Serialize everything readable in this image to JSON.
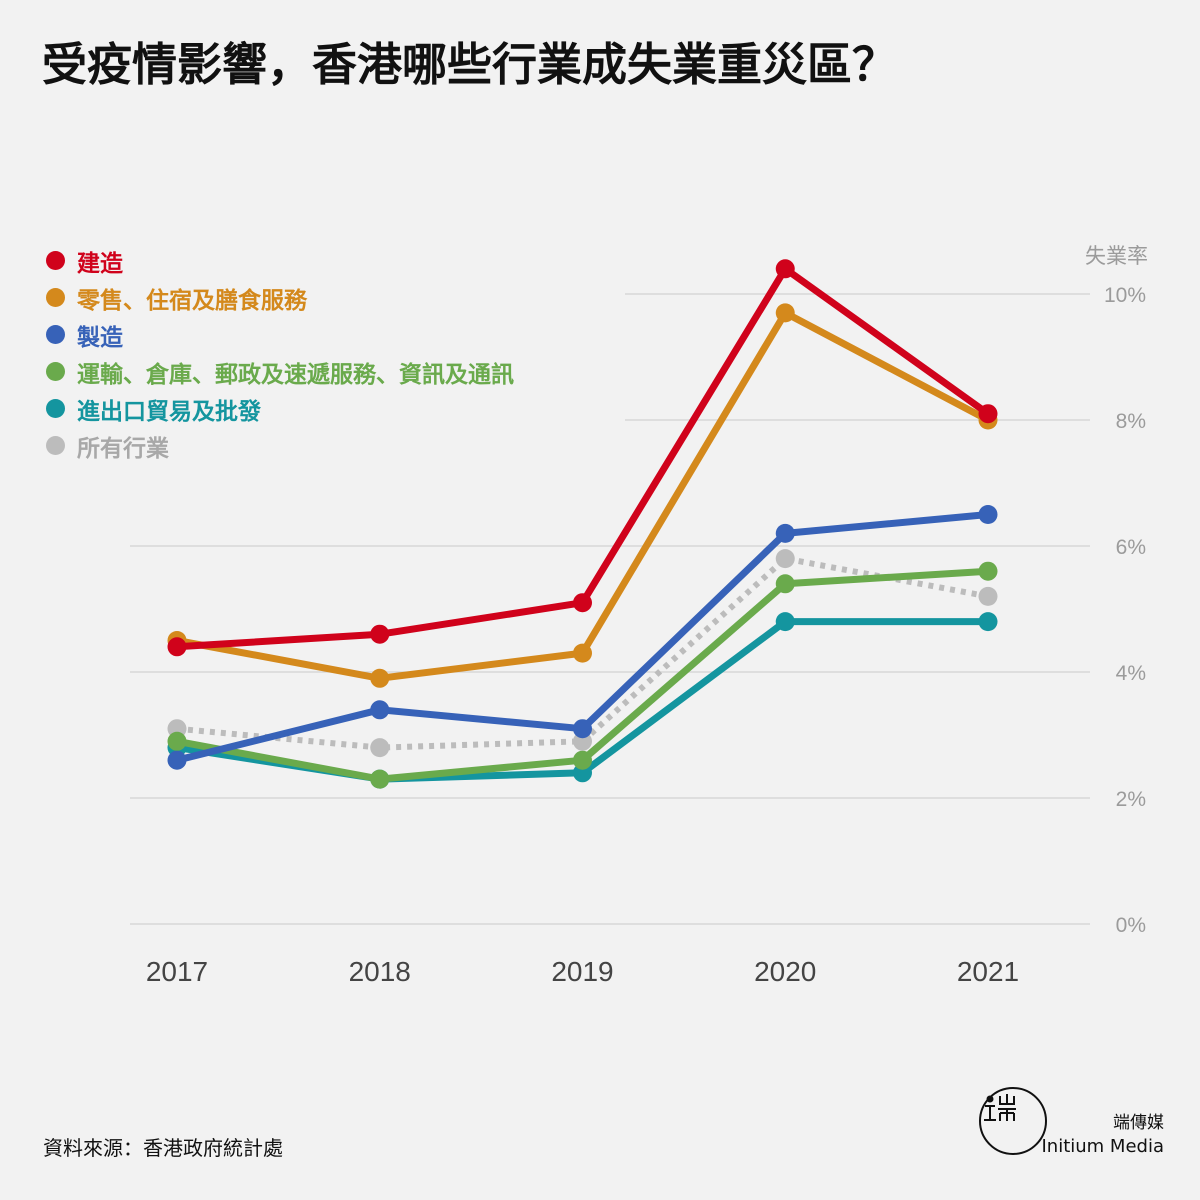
{
  "title": "受疫情影響，香港哪些行業成失業重災區？",
  "source": "資料來源：香港政府統計處",
  "brand": {
    "name_cn": "端傳媒",
    "name_en": "Initium Media"
  },
  "chart_data": {
    "type": "line",
    "title": "受疫情影響，香港哪些行業成失業重災區？",
    "ylabel": "失業率",
    "ylim": [
      0,
      10
    ],
    "yticks": [
      0,
      2,
      4,
      6,
      8,
      10
    ],
    "ytick_labels": [
      "0%",
      "2%",
      "4%",
      "6%",
      "8%",
      "10%"
    ],
    "categories": [
      "2017",
      "2018",
      "2019",
      "2020",
      "2021"
    ],
    "grid": true,
    "legend_position": "top-left",
    "series": [
      {
        "name": "建造",
        "color": "#d0021b",
        "style": "solid",
        "values": [
          4.4,
          4.6,
          5.1,
          10.4,
          8.1
        ]
      },
      {
        "name": "零售、住宿及膳食服務",
        "color": "#d4891c",
        "style": "solid",
        "values": [
          4.5,
          3.9,
          4.3,
          9.7,
          8.0
        ]
      },
      {
        "name": "製造",
        "color": "#3762b8",
        "style": "solid",
        "values": [
          2.6,
          3.4,
          3.1,
          6.2,
          6.5
        ]
      },
      {
        "name": "運輸、倉庫、郵政及速遞服務、資訊及通訊",
        "color": "#6aaa4c",
        "style": "solid",
        "values": [
          2.9,
          2.3,
          2.6,
          5.4,
          5.6
        ]
      },
      {
        "name": "進出口貿易及批發",
        "color": "#14959f",
        "style": "solid",
        "values": [
          2.8,
          2.3,
          2.4,
          4.8,
          4.8
        ]
      },
      {
        "name": "所有行業",
        "color": "#bcbcbc",
        "style": "dotted",
        "values": [
          3.1,
          2.8,
          2.9,
          5.8,
          5.2
        ]
      }
    ]
  }
}
